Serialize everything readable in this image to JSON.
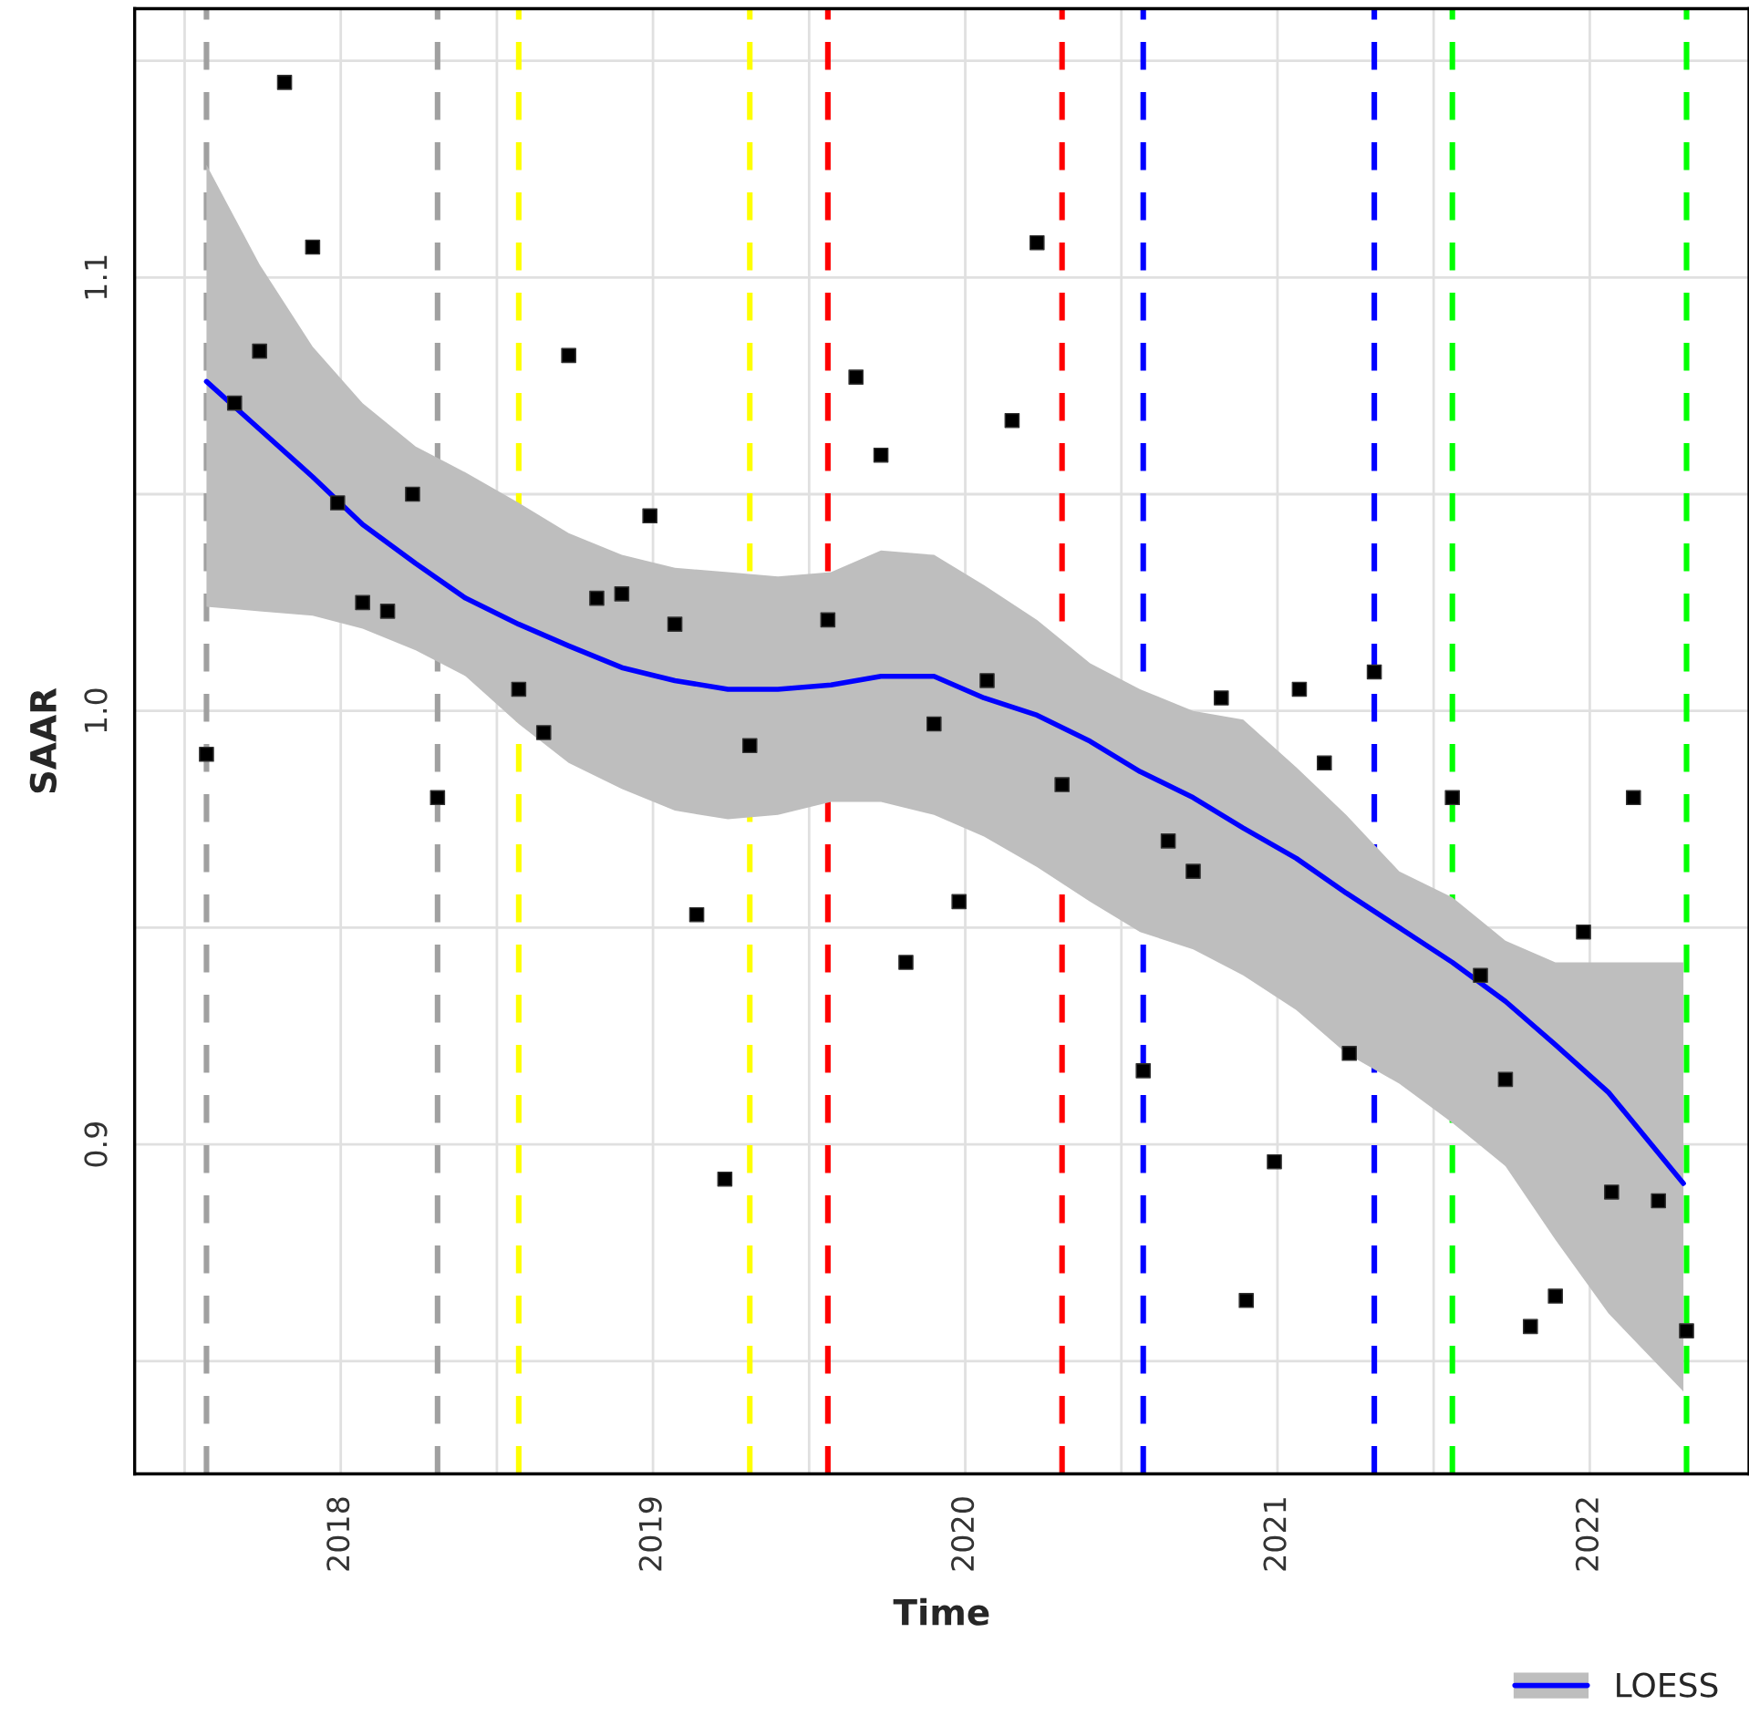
{
  "chart_data": {
    "type": "scatter",
    "xlabel": "Time",
    "ylabel": "SAAR",
    "xlim": [
      2017.34,
      2022.51
    ],
    "ylim": [
      0.824,
      1.162
    ],
    "xticks": [
      2018,
      2019,
      2020,
      2021,
      2022,
      {
        "value": 2017.5,
        "label": null
      },
      {
        "value": 2018.5,
        "label": null
      },
      {
        "value": 2019.5,
        "label": null
      },
      {
        "value": 2020.5,
        "label": null
      },
      {
        "value": 2021.5,
        "label": null
      }
    ],
    "yticks": [
      {
        "value": 0.9,
        "label": "0.9"
      },
      {
        "value": 1.0,
        "label": "1.0"
      },
      {
        "value": 1.1,
        "label": "1.1"
      },
      {
        "value": 0.85,
        "label": null
      },
      {
        "value": 0.95,
        "label": null
      },
      {
        "value": 1.05,
        "label": null
      },
      {
        "value": 1.15,
        "label": null
      }
    ],
    "grid": true,
    "legend": "bottom right",
    "marker": "square",
    "series": [
      {
        "color": "#000000",
        "x": [
          2017.57,
          2017.66,
          2017.74,
          2017.82,
          2017.91,
          2017.99,
          2018.07,
          2018.15,
          2018.23,
          2018.31,
          2018.57,
          2018.65,
          2018.73,
          2018.82,
          2018.9,
          2018.99,
          2019.07,
          2019.14,
          2019.23,
          2019.31,
          2019.56,
          2019.65,
          2019.73,
          2019.81,
          2019.9,
          2019.98,
          2020.07,
          2020.15,
          2020.23,
          2020.31,
          2020.57,
          2020.65,
          2020.73,
          2020.82,
          2020.9,
          2020.99,
          2021.07,
          2021.15,
          2021.23,
          2021.31,
          2021.56,
          2021.65,
          2021.73,
          2021.81,
          2021.89,
          2021.98,
          2022.07,
          2022.14,
          2022.22,
          2022.31
        ],
        "values": [
          0.99,
          1.071,
          1.083,
          1.145,
          1.107,
          1.048,
          1.025,
          1.023,
          1.05,
          0.98,
          1.005,
          0.995,
          1.082,
          1.026,
          1.027,
          1.045,
          1.02,
          0.953,
          0.892,
          0.992,
          1.021,
          1.077,
          1.059,
          0.942,
          0.997,
          0.956,
          1.007,
          1.067,
          1.108,
          0.983,
          0.917,
          0.97,
          0.963,
          1.003,
          0.864,
          0.896,
          1.005,
          0.988,
          0.921,
          1.009,
          0.98,
          0.939,
          0.915,
          0.858,
          0.865,
          0.949,
          0.889,
          0.98,
          0.887,
          0.857
        ]
      },
      {
        "type": "line",
        "name": "LOESS",
        "color": "#0000ff",
        "line_style": "solid",
        "marker": "none",
        "x": [
          2017.57,
          2017.74,
          2017.91,
          2018.07,
          2018.24,
          2018.4,
          2018.57,
          2018.73,
          2018.9,
          2019.07,
          2019.24,
          2019.4,
          2019.57,
          2019.73,
          2019.9,
          2020.06,
          2020.23,
          2020.4,
          2020.56,
          2020.73,
          2020.89,
          2021.06,
          2021.22,
          2021.39,
          2021.56,
          2021.73,
          2021.89,
          2022.06,
          2022.3
        ],
        "values": [
          1.076,
          1.065,
          1.054,
          1.043,
          1.034,
          1.026,
          1.02,
          1.015,
          1.01,
          1.007,
          1.005,
          1.005,
          1.006,
          1.008,
          1.008,
          1.003,
          0.999,
          0.993,
          0.986,
          0.98,
          0.973,
          0.966,
          0.958,
          0.95,
          0.942,
          0.933,
          0.923,
          0.912,
          0.891
        ],
        "lower": [
          1.024,
          1.023,
          1.022,
          1.019,
          1.014,
          1.008,
          0.997,
          0.988,
          0.982,
          0.977,
          0.975,
          0.976,
          0.979,
          0.979,
          0.976,
          0.971,
          0.964,
          0.956,
          0.949,
          0.945,
          0.939,
          0.931,
          0.921,
          0.914,
          0.905,
          0.895,
          0.878,
          0.861,
          0.843
        ],
        "upper": [
          1.126,
          1.103,
          1.084,
          1.071,
          1.061,
          1.055,
          1.048,
          1.041,
          1.036,
          1.033,
          1.032,
          1.031,
          1.032,
          1.037,
          1.036,
          1.029,
          1.021,
          1.011,
          1.005,
          1.0,
          0.998,
          0.987,
          0.976,
          0.963,
          0.957,
          0.947,
          0.942,
          0.942,
          0.942
        ]
      }
    ],
    "ref_lines": [
      {
        "axis": "x",
        "value": 2017.57,
        "color": "#a0a0a0",
        "line_style": "dashed"
      },
      {
        "axis": "x",
        "value": 2018.31,
        "color": "#a0a0a0",
        "line_style": "dashed"
      },
      {
        "axis": "x",
        "value": 2018.57,
        "color": "#ffff00",
        "line_style": "dashed"
      },
      {
        "axis": "x",
        "value": 2019.31,
        "color": "#ffff00",
        "line_style": "dashed"
      },
      {
        "axis": "x",
        "value": 2019.56,
        "color": "#ff0000",
        "line_style": "dashed"
      },
      {
        "axis": "x",
        "value": 2020.31,
        "color": "#ff0000",
        "line_style": "dashed"
      },
      {
        "axis": "x",
        "value": 2020.57,
        "color": "#0000ff",
        "line_style": "dashed"
      },
      {
        "axis": "x",
        "value": 2021.31,
        "color": "#0000ff",
        "line_style": "dashed"
      },
      {
        "axis": "x",
        "value": 2021.56,
        "color": "#00ff00",
        "line_style": "dashed"
      },
      {
        "axis": "x",
        "value": 2022.31,
        "color": "#00ff00",
        "line_style": "dashed"
      }
    ]
  }
}
